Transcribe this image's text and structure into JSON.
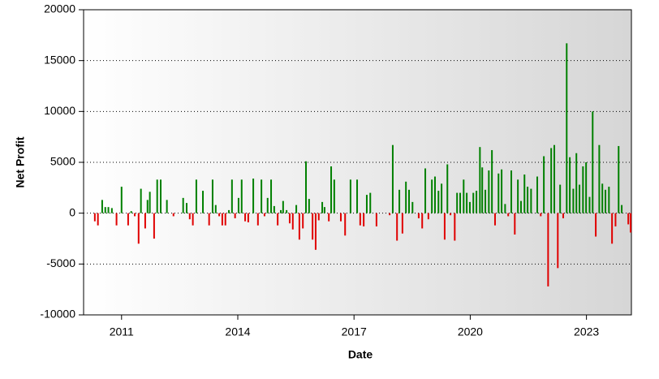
{
  "chart_data": {
    "type": "bar",
    "x_label": "Date",
    "y_label": "Net Profit",
    "x": [
      2010.31,
      2010.39,
      2010.5,
      2010.58,
      2010.66,
      2010.75,
      2010.87,
      2011.0,
      2011.17,
      2011.25,
      2011.34,
      2011.44,
      2011.5,
      2011.61,
      2011.67,
      2011.73,
      2011.84,
      2011.92,
      2012.01,
      2012.17,
      2012.34,
      2012.59,
      2012.68,
      2012.76,
      2012.84,
      2012.93,
      2013.1,
      2013.26,
      2013.35,
      2013.43,
      2013.52,
      2013.6,
      2013.68,
      2013.77,
      2013.85,
      2013.93,
      2014.02,
      2014.1,
      2014.19,
      2014.27,
      2014.4,
      2014.52,
      2014.61,
      2014.69,
      2014.77,
      2014.86,
      2014.94,
      2015.03,
      2015.11,
      2015.17,
      2015.26,
      2015.34,
      2015.42,
      2015.51,
      2015.59,
      2015.68,
      2015.76,
      2015.84,
      2015.93,
      2016.01,
      2016.09,
      2016.18,
      2016.24,
      2016.35,
      2016.41,
      2016.49,
      2016.66,
      2016.77,
      2016.91,
      2017.08,
      2017.16,
      2017.25,
      2017.33,
      2017.42,
      2017.58,
      2017.92,
      2018.0,
      2018.11,
      2018.17,
      2018.25,
      2018.34,
      2018.42,
      2018.51,
      2018.67,
      2018.76,
      2018.84,
      2018.92,
      2019.01,
      2019.09,
      2019.18,
      2019.26,
      2019.34,
      2019.41,
      2019.49,
      2019.6,
      2019.66,
      2019.74,
      2019.83,
      2019.91,
      2019.99,
      2020.08,
      2020.16,
      2020.25,
      2020.31,
      2020.39,
      2020.48,
      2020.56,
      2020.64,
      2020.73,
      2020.81,
      2020.9,
      2020.98,
      2021.06,
      2021.15,
      2021.23,
      2021.31,
      2021.4,
      2021.48,
      2021.57,
      2021.73,
      2021.82,
      2021.9,
      2022.01,
      2022.09,
      2022.17,
      2022.26,
      2022.32,
      2022.4,
      2022.49,
      2022.57,
      2022.66,
      2022.74,
      2022.82,
      2022.91,
      2022.99,
      2023.08,
      2023.16,
      2023.24,
      2023.33,
      2023.41,
      2023.49,
      2023.58,
      2023.66,
      2023.75,
      2023.83,
      2023.91,
      2024.08,
      2024.14
    ],
    "values": [
      -800,
      -1200,
      1300,
      600,
      600,
      500,
      -1200,
      2600,
      -1200,
      200,
      -300,
      -3000,
      2400,
      -1500,
      1300,
      2100,
      -2500,
      3300,
      3300,
      1300,
      -300,
      1500,
      1000,
      -600,
      -1200,
      3300,
      2200,
      -1200,
      3300,
      800,
      -300,
      -1200,
      -1200,
      300,
      3300,
      -500,
      1500,
      3300,
      -800,
      -900,
      3400,
      -1200,
      3300,
      -300,
      1500,
      3300,
      700,
      -1200,
      300,
      1200,
      300,
      -1000,
      -1600,
      800,
      -2600,
      -1500,
      5100,
      1400,
      -2600,
      -3600,
      -700,
      1100,
      600,
      -800,
      4600,
      3300,
      -800,
      -2200,
      3300,
      3300,
      -1200,
      -1300,
      1800,
      2000,
      -1300,
      -200,
      6700,
      -2700,
      2300,
      -2000,
      3100,
      2300,
      1100,
      -500,
      -1500,
      4400,
      -600,
      3300,
      3600,
      2200,
      2900,
      -2600,
      4800,
      -200,
      -2700,
      2000,
      2000,
      3300,
      2000,
      1100,
      2000,
      2200,
      6500,
      4500,
      2300,
      4200,
      6200,
      -1200,
      3900,
      4300,
      900,
      -300,
      4200,
      -2100,
      3300,
      1200,
      3800,
      2600,
      2400,
      3600,
      -300,
      5600,
      -7200,
      6400,
      6700,
      -5400,
      2800,
      -500,
      16700,
      5500,
      2400,
      5900,
      2800,
      4600,
      5000,
      1600,
      10000,
      -2300,
      6700,
      2900,
      2300,
      2600,
      -3000,
      -1300,
      6600,
      800,
      -1100,
      -1900
    ],
    "positive_color": "#008000",
    "negative_color": "#e00000",
    "xlim": [
      2010.02,
      2024.16
    ],
    "xticks": [
      2011,
      2014,
      2017,
      2020,
      2023
    ],
    "ylim": [
      -10000,
      20000
    ],
    "yticks": [
      -10000,
      -5000,
      0,
      5000,
      10000,
      15000,
      20000
    ],
    "grid": true
  }
}
